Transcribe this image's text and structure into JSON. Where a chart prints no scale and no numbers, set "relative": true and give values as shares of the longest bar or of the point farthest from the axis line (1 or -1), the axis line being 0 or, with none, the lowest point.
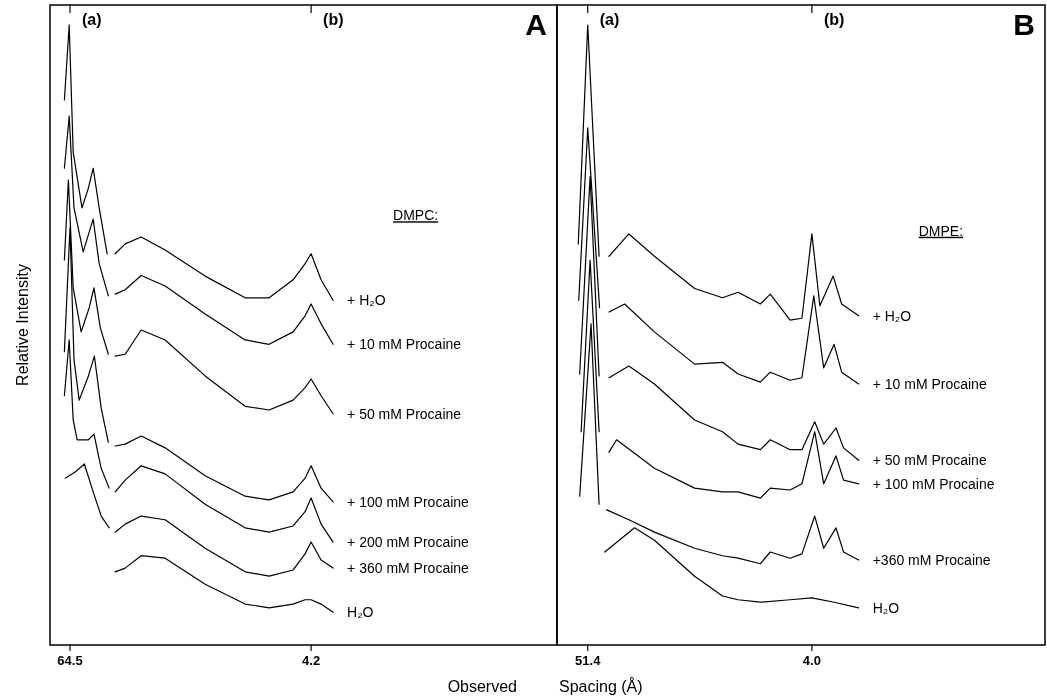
{
  "chart_data": [
    {
      "type": "line",
      "title": "A",
      "legend_title": "DMPC:",
      "xlabel": "Observed",
      "ylabel": "Relative Intensity",
      "annotations": [
        "(a)",
        "(b)"
      ],
      "relative": true,
      "xlim": [
        69.5,
        -57.3
      ],
      "xticks": [
        64.5,
        4.2
      ],
      "tick_labels": "x",
      "legend": false,
      "grid": false,
      "series": [
        {
          "name": "+ H₂O",
          "color": "#000000",
          "x": [
            65.9,
            64.7,
            63.7,
            61.5,
            59.9,
            58.7,
            57.2,
            55.2,
            54.0,
            53.2,
            50.7,
            46.7,
            40.7,
            30.7,
            20.7,
            14.7,
            8.7,
            5.7,
            4.2,
            1.7,
            -1.3
          ],
          "values": [
            0.879,
            1.0,
            0.795,
            0.705,
            0.737,
            0.769,
            0.705,
            0.631,
            null,
            0.631,
            0.647,
            0.658,
            0.637,
            0.595,
            0.56,
            0.56,
            0.589,
            0.615,
            0.631,
            0.589,
            0.556
          ]
        },
        {
          "name": "+ 10 mM Procaine",
          "color": "#000000",
          "x": [
            65.9,
            64.7,
            63.5,
            61.2,
            59.7,
            58.7,
            57.2,
            54.9,
            54.0,
            53.2,
            50.7,
            46.7,
            40.7,
            30.7,
            20.7,
            14.7,
            8.7,
            5.7,
            4.2,
            1.7,
            -1.3
          ],
          "values": [
            0.769,
            0.853,
            0.705,
            0.634,
            0.666,
            0.687,
            0.615,
            0.563,
            null,
            0.566,
            0.573,
            0.596,
            0.579,
            0.534,
            0.492,
            0.485,
            0.505,
            0.531,
            0.55,
            0.518,
            0.485
          ]
        },
        {
          "name": "+ 50 mM Procaine",
          "color": "#000000",
          "x": [
            65.9,
            64.9,
            63.7,
            61.7,
            59.7,
            58.5,
            56.9,
            54.9,
            54.0,
            53.2,
            50.7,
            46.7,
            40.7,
            30.7,
            20.7,
            14.7,
            8.7,
            5.7,
            4.2,
            1.7,
            -1.3
          ],
          "values": [
            0.621,
            0.75,
            0.576,
            0.505,
            0.544,
            0.576,
            0.511,
            0.469,
            null,
            0.466,
            0.469,
            0.508,
            0.492,
            0.434,
            0.385,
            0.379,
            0.395,
            0.415,
            0.429,
            0.402,
            0.373
          ]
        },
        {
          "name": "+ 100 mM Procaine",
          "color": "#000000",
          "x": [
            65.9,
            64.5,
            63.5,
            62.2,
            59.9,
            58.4,
            56.7,
            54.9,
            54.0,
            53.2,
            50.7,
            46.7,
            40.7,
            30.7,
            20.7,
            14.7,
            8.7,
            5.7,
            4.2,
            1.7,
            -1.3
          ],
          "values": [
            0.473,
            0.673,
            0.46,
            0.395,
            0.434,
            0.466,
            0.382,
            0.327,
            null,
            0.321,
            0.324,
            0.337,
            0.318,
            0.273,
            0.24,
            0.234,
            0.247,
            0.269,
            0.289,
            0.253,
            0.231
          ]
        },
        {
          "name": "+ 200 mM Procaine",
          "color": "#000000",
          "x": [
            65.9,
            64.7,
            63.7,
            62.7,
            59.9,
            58.5,
            56.7,
            54.7,
            54.0,
            53.2,
            50.7,
            46.7,
            40.7,
            30.7,
            20.7,
            14.7,
            8.7,
            5.7,
            4.2,
            1.7,
            -1.3
          ],
          "values": [
            0.402,
            0.492,
            0.363,
            0.331,
            0.331,
            0.34,
            0.285,
            0.253,
            null,
            0.247,
            0.266,
            0.289,
            0.276,
            0.227,
            0.189,
            0.182,
            0.192,
            0.215,
            0.237,
            0.195,
            0.166
          ]
        },
        {
          "name": "+ 360 mM Procaine",
          "color": "#000000",
          "x": [
            65.7,
            63.2,
            60.9,
            58.7,
            56.7,
            54.7,
            54.0,
            53.2,
            50.7,
            46.7,
            40.7,
            30.7,
            20.7,
            14.7,
            8.7,
            5.7,
            4.2,
            1.7,
            -1.3
          ],
          "values": [
            0.269,
            0.279,
            0.292,
            0.247,
            0.208,
            0.189,
            null,
            0.182,
            0.195,
            0.208,
            0.202,
            0.156,
            0.118,
            0.111,
            0.121,
            0.147,
            0.166,
            0.137,
            0.124
          ]
        },
        {
          "name": "H₂O",
          "color": "#000000",
          "x": [
            53.2,
            50.7,
            46.7,
            40.7,
            30.7,
            20.7,
            14.7,
            8.7,
            5.7,
            4.2,
            1.7,
            -1.3
          ],
          "values": [
            0.118,
            0.124,
            0.144,
            0.14,
            0.098,
            0.066,
            0.06,
            0.066,
            0.073,
            0.073,
            0.066,
            0.053
          ]
        }
      ]
    },
    {
      "type": "line",
      "title": "B",
      "legend_title": "DMPE:",
      "xlabel": "Spacing (Å)",
      "annotations": [
        "(a)",
        "(b)"
      ],
      "relative": true,
      "xlim": [
        57.9,
        -45.3
      ],
      "xticks": [
        51.4,
        {
          "value": 4.0,
          "label": "4.0"
        }
      ],
      "tick_labels": "x",
      "legend": false,
      "grid": false,
      "series": [
        {
          "name": "+ H₂O",
          "color": "#000000",
          "x": [
            53.4,
            51.4,
            49.0,
            48.0,
            46.9,
            42.7,
            37.3,
            28.8,
            22.9,
            19.6,
            14.9,
            12.8,
            8.6,
            6.1,
            4.0,
            2.3,
            -0.5,
            -2.3,
            -5.9
          ],
          "values": [
            0.647,
            1.0,
            0.627,
            null,
            0.627,
            0.663,
            0.627,
            0.575,
            0.56,
            0.569,
            0.55,
            0.566,
            0.524,
            0.527,
            0.663,
            0.547,
            0.595,
            0.55,
            0.531
          ]
        },
        {
          "name": "+ 10 mM Procaine",
          "color": "#000000",
          "x": [
            53.3,
            51.4,
            48.9,
            48.0,
            46.9,
            43.6,
            37.3,
            28.8,
            22.9,
            19.6,
            14.9,
            12.8,
            8.6,
            6.1,
            3.6,
            1.5,
            -0.7,
            -2.3,
            -5.9
          ],
          "values": [
            0.556,
            0.834,
            0.544,
            null,
            0.537,
            0.55,
            0.505,
            0.453,
            0.456,
            0.437,
            0.424,
            0.44,
            0.427,
            0.431,
            0.563,
            0.447,
            0.485,
            0.44,
            0.421
          ]
        },
        {
          "name": "+ 50 mM Procaine",
          "color": "#000000",
          "x": [
            53.1,
            50.9,
            49.0,
            48.0,
            46.9,
            42.7,
            37.3,
            28.8,
            22.9,
            19.6,
            14.9,
            12.8,
            8.6,
            6.1,
            3.4,
            1.5,
            -1.1,
            -2.7,
            -5.9
          ],
          "values": [
            0.437,
            0.756,
            0.434,
            null,
            0.431,
            0.45,
            0.421,
            0.363,
            0.344,
            0.324,
            0.315,
            0.331,
            0.315,
            0.315,
            0.36,
            0.324,
            0.35,
            0.318,
            0.298
          ]
        },
        {
          "name": "+ 100 mM Procaine",
          "color": "#000000",
          "x": [
            52.8,
            50.9,
            49.0,
            48.0,
            46.9,
            45.3,
            37.3,
            28.8,
            22.9,
            19.6,
            14.9,
            12.8,
            8.6,
            6.1,
            3.4,
            1.5,
            -1.1,
            -2.7,
            -5.9
          ],
          "values": [
            0.344,
            0.621,
            0.344,
            null,
            0.311,
            0.331,
            0.285,
            0.253,
            0.247,
            0.247,
            0.237,
            0.253,
            0.25,
            0.26,
            0.344,
            0.26,
            0.305,
            0.266,
            0.26
          ]
        },
        {
          "name": "+360 mM Procaine",
          "color": "#000000",
          "x": [
            53.1,
            50.7,
            49.0,
            48.0,
            47.4,
            42.7,
            37.3,
            28.8,
            22.9,
            19.6,
            14.9,
            12.8,
            8.6,
            6.1,
            3.4,
            1.5,
            -1.1,
            -2.7,
            -5.9
          ],
          "values": [
            0.24,
            0.518,
            0.227,
            null,
            0.218,
            0.202,
            0.182,
            0.156,
            0.144,
            0.14,
            0.131,
            0.15,
            0.14,
            0.147,
            0.208,
            0.156,
            0.189,
            0.15,
            0.137
          ]
        },
        {
          "name": "H₂O",
          "color": "#000000",
          "x": [
            47.8,
            41.5,
            37.3,
            28.8,
            22.9,
            19.6,
            14.9,
            8.6,
            4.0,
            -0.7,
            -5.9
          ],
          "values": [
            0.15,
            0.189,
            0.169,
            0.111,
            0.079,
            0.073,
            0.069,
            0.073,
            0.076,
            0.069,
            0.06
          ]
        }
      ]
    }
  ]
}
